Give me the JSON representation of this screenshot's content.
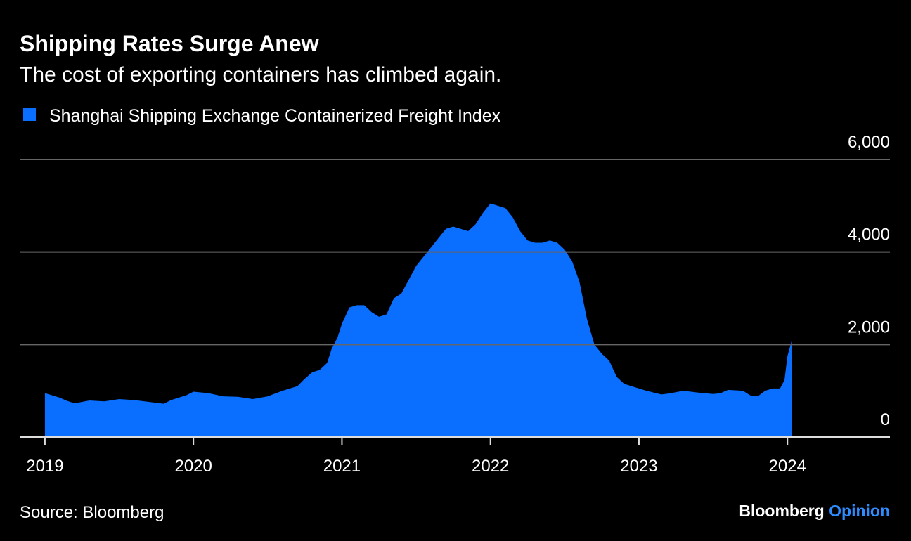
{
  "chart_data": {
    "type": "area",
    "title": "Shipping Rates Surge Anew",
    "subtitle": "The cost of exporting containers has climbed again.",
    "source": "Source: Bloomberg",
    "brand": {
      "name": "Bloomberg",
      "suffix": "Opinion"
    },
    "x": [
      2019.0,
      2019.1,
      2019.15,
      2019.2,
      2019.3,
      2019.4,
      2019.5,
      2019.6,
      2019.7,
      2019.8,
      2019.85,
      2019.95,
      2020.0,
      2020.1,
      2020.2,
      2020.3,
      2020.4,
      2020.5,
      2020.6,
      2020.65,
      2020.7,
      2020.75,
      2020.8,
      2020.85,
      2020.9,
      2020.93,
      2020.97,
      2021.0,
      2021.05,
      2021.1,
      2021.15,
      2021.2,
      2021.25,
      2021.3,
      2021.35,
      2021.4,
      2021.45,
      2021.5,
      2021.55,
      2021.6,
      2021.65,
      2021.7,
      2021.75,
      2021.8,
      2021.85,
      2021.9,
      2021.95,
      2022.0,
      2022.05,
      2022.1,
      2022.15,
      2022.2,
      2022.25,
      2022.3,
      2022.35,
      2022.4,
      2022.45,
      2022.5,
      2022.55,
      2022.6,
      2022.65,
      2022.7,
      2022.75,
      2022.8,
      2022.85,
      2022.9,
      2022.95,
      2023.0,
      2023.05,
      2023.1,
      2023.15,
      2023.2,
      2023.3,
      2023.35,
      2023.4,
      2023.5,
      2023.55,
      2023.6,
      2023.7,
      2023.75,
      2023.8,
      2023.85,
      2023.9,
      2023.95,
      2023.98,
      2024.0,
      2024.03
    ],
    "series": [
      {
        "name": "Shanghai Shipping Exchange Containerized Freight Index",
        "color": "#0a6eff",
        "values": [
          950,
          850,
          780,
          730,
          790,
          770,
          820,
          800,
          760,
          720,
          800,
          900,
          980,
          950,
          880,
          870,
          820,
          880,
          1000,
          1050,
          1100,
          1260,
          1400,
          1450,
          1600,
          1900,
          2150,
          2450,
          2800,
          2850,
          2850,
          2700,
          2600,
          2650,
          3000,
          3100,
          3400,
          3700,
          3900,
          4100,
          4300,
          4500,
          4550,
          4500,
          4450,
          4600,
          4850,
          5050,
          5000,
          4950,
          4750,
          4450,
          4250,
          4200,
          4200,
          4250,
          4200,
          4050,
          3800,
          3350,
          2550,
          2000,
          1800,
          1650,
          1300,
          1150,
          1100,
          1050,
          1000,
          960,
          920,
          940,
          1000,
          980,
          960,
          930,
          950,
          1020,
          1000,
          900,
          880,
          1000,
          1050,
          1050,
          1230,
          1750,
          2100
        ]
      }
    ],
    "xlim": [
      2018.83,
      2024.69
    ],
    "xticks": [
      2019,
      2020,
      2021,
      2022,
      2023,
      2024
    ],
    "ylim": [
      0,
      6000
    ],
    "yticks": [
      0,
      {
        "value": 2000,
        "label": "2,000"
      },
      {
        "value": 4000,
        "label": "4,000"
      },
      {
        "value": 6000,
        "label": "6,000"
      }
    ],
    "grid": true
  }
}
